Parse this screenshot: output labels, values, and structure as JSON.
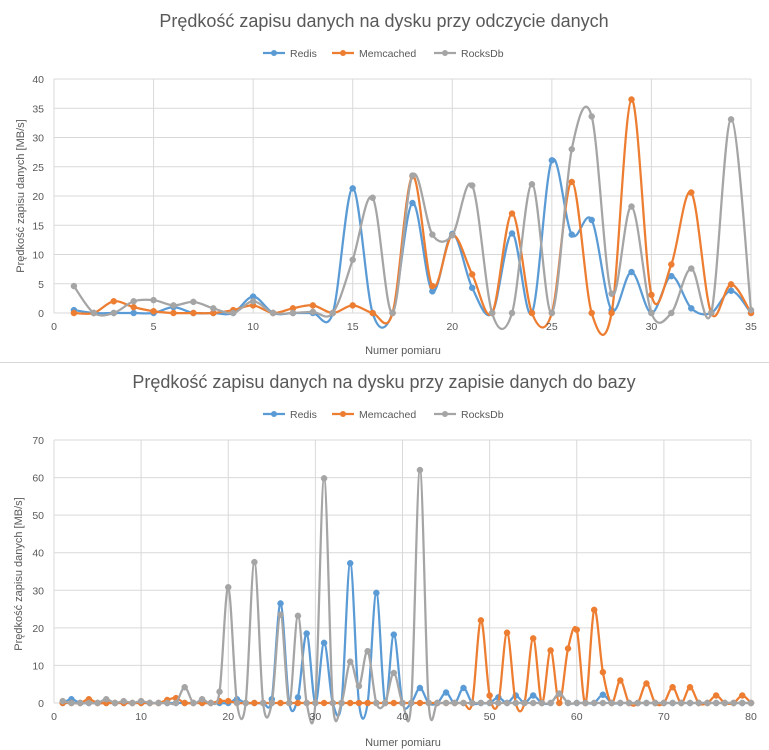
{
  "colors": {
    "Redis": "#5b9bd5",
    "Memcached": "#ed7d31",
    "RocksDb": "#a5a5a5",
    "grid": "#d9d9d9",
    "text": "#595959"
  },
  "chart_data": [
    {
      "type": "line",
      "title": "Prędkość zapisu danych na dysku przy odczycie danych",
      "xlabel": "Numer pomiaru",
      "ylabel": "Prędkość zapisu danych [MB/s]",
      "xlim": [
        0,
        35
      ],
      "ylim": [
        0,
        40
      ],
      "xticks": [
        0,
        5,
        10,
        15,
        20,
        25,
        30,
        35
      ],
      "yticks": [
        0,
        5,
        10,
        15,
        20,
        25,
        30,
        35,
        40
      ],
      "grid": true,
      "legend": "top",
      "x": [
        1,
        2,
        3,
        4,
        5,
        6,
        7,
        8,
        9,
        10,
        11,
        12,
        13,
        14,
        15,
        16,
        17,
        18,
        19,
        20,
        21,
        22,
        23,
        24,
        25,
        26,
        27,
        28,
        29,
        30,
        31,
        32,
        33,
        34,
        35
      ],
      "series": [
        {
          "name": "Redis",
          "values": [
            0.5,
            0,
            0,
            0,
            0,
            1,
            0,
            0,
            0,
            2.8,
            0,
            0,
            0,
            0,
            21.3,
            0,
            0,
            18.8,
            3.7,
            13.5,
            4.3,
            0,
            13.6,
            0,
            26.1,
            13.4,
            15.9,
            0.5,
            7,
            0,
            6.3,
            0.8,
            0,
            3.8,
            0
          ]
        },
        {
          "name": "Memcached",
          "values": [
            0,
            0,
            2,
            1,
            0.3,
            0,
            0,
            0,
            0.5,
            1.3,
            0,
            0.8,
            1.3,
            0,
            1.3,
            0,
            0,
            23.4,
            4.6,
            13.3,
            6.6,
            0,
            17,
            0,
            0,
            22.4,
            0,
            0,
            36.5,
            3.1,
            8.3,
            20.6,
            0,
            4.9,
            0
          ]
        },
        {
          "name": "RocksDb",
          "values": [
            4.6,
            0,
            0,
            2,
            2.2,
            1.3,
            1.9,
            0.8,
            0,
            2,
            0,
            0,
            0.2,
            0,
            9.1,
            19.7,
            0,
            23.5,
            13.4,
            13.3,
            21.8,
            0,
            0,
            22,
            0,
            28,
            33.6,
            3.3,
            18.2,
            0,
            0,
            7.6,
            0,
            33.1,
            0.5
          ]
        }
      ]
    },
    {
      "type": "line",
      "title": "Prędkość zapisu danych na dysku przy zapisie danych do bazy",
      "xlabel": "Numer pomiaru",
      "ylabel": "Prędkość zapisu danych [MB/s]",
      "xlim": [
        0,
        80
      ],
      "ylim": [
        0,
        70
      ],
      "xticks": [
        0,
        10,
        20,
        30,
        40,
        50,
        60,
        70,
        80
      ],
      "yticks": [
        0,
        10,
        20,
        30,
        40,
        50,
        60,
        70
      ],
      "grid": true,
      "legend": "top",
      "x": [
        1,
        2,
        3,
        4,
        5,
        6,
        7,
        8,
        9,
        10,
        11,
        12,
        13,
        14,
        15,
        16,
        17,
        18,
        19,
        20,
        21,
        22,
        23,
        24,
        25,
        26,
        27,
        28,
        29,
        30,
        31,
        32,
        33,
        34,
        35,
        36,
        37,
        38,
        39,
        40,
        41,
        42,
        43,
        44,
        45,
        46,
        47,
        48,
        49,
        50,
        51,
        52,
        53,
        54,
        55,
        56,
        57,
        58,
        59,
        60,
        61,
        62,
        63,
        64,
        65,
        66,
        67,
        68,
        69,
        70,
        71,
        72,
        73,
        74,
        75,
        76,
        77,
        78,
        79,
        80
      ],
      "series": [
        {
          "name": "Redis",
          "values": [
            0,
            1,
            0,
            0,
            0,
            0,
            0,
            0,
            0,
            0,
            0,
            0,
            0,
            0,
            0,
            0,
            0,
            0,
            0,
            0,
            1,
            0,
            0,
            0,
            1,
            26.5,
            0,
            1.5,
            18.5,
            0,
            16,
            0,
            0,
            37.2,
            0,
            0,
            29.3,
            0,
            18.2,
            0,
            0,
            4,
            0,
            0,
            2.8,
            0,
            4,
            0,
            0,
            0,
            1.5,
            0,
            2,
            0,
            2,
            0,
            0,
            2.5,
            0,
            0,
            0,
            0,
            2.2,
            0,
            0,
            0,
            0,
            0,
            0,
            0,
            0,
            0,
            0,
            0,
            0,
            0,
            0,
            0,
            0,
            0
          ]
        },
        {
          "name": "Memcached",
          "values": [
            0,
            0,
            0,
            1,
            0,
            0,
            0,
            0,
            0,
            0,
            0,
            0,
            0.8,
            1.3,
            0,
            0,
            0,
            0,
            0.5,
            0.5,
            0,
            0,
            0,
            0,
            0,
            0,
            0,
            0,
            0,
            0,
            0,
            0,
            0,
            0,
            0,
            0,
            0,
            0,
            0,
            0,
            0,
            0,
            0,
            0,
            0,
            0,
            0,
            0,
            22,
            2,
            0,
            18.7,
            0,
            0,
            17.2,
            0,
            14,
            0,
            14.5,
            19.5,
            0,
            24.8,
            8.2,
            0,
            6,
            0,
            0,
            5.2,
            0,
            0,
            4.2,
            0,
            4.2,
            0,
            0,
            2,
            0,
            0,
            2,
            0
          ]
        },
        {
          "name": "RocksDb",
          "values": [
            0.5,
            0,
            0,
            0,
            0,
            1,
            0,
            0.5,
            0,
            0.5,
            0,
            0,
            0,
            0,
            4.2,
            0,
            1,
            0,
            3,
            30.8,
            0,
            0,
            37.5,
            0,
            0,
            23.5,
            0,
            23.2,
            0,
            0,
            59.8,
            0,
            0,
            11,
            4.5,
            13.8,
            0,
            0,
            8,
            0,
            0,
            62,
            0,
            0,
            0,
            0,
            0,
            0,
            0,
            0,
            0,
            0,
            0,
            0,
            0,
            0,
            0,
            2.5,
            0,
            0,
            0,
            0,
            0,
            0,
            0,
            0,
            0,
            0,
            0,
            0,
            0,
            0,
            0,
            0,
            0,
            0,
            0,
            0,
            0,
            0
          ]
        }
      ]
    }
  ]
}
